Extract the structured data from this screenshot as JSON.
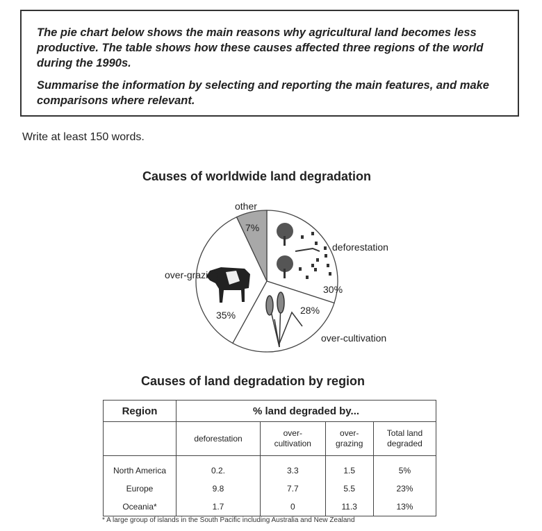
{
  "task": {
    "paragraph1": "The pie chart below shows the main reasons why agricultural land becomes less productive. The table shows how these causes affected three regions of the world during the 1990s.",
    "paragraph2": "Summarise the information by selecting and reporting the main features, and make comparisons where relevant."
  },
  "instruction": "Write at least 150 words.",
  "chart_data": [
    {
      "type": "pie",
      "title": "Causes of worldwide land degradation",
      "slices": [
        {
          "label": "deforestation",
          "value": 30,
          "value_label": "30%",
          "color": "#ffffff",
          "icon": "trees-and-stumps-icon"
        },
        {
          "label": "over-cultivation",
          "value": 28,
          "value_label": "28%",
          "color": "#ffffff",
          "icon": "wheat-icon"
        },
        {
          "label": "over-grazing",
          "value": 35,
          "value_label": "35%",
          "color": "#ffffff",
          "icon": "cow-icon"
        },
        {
          "label": "other",
          "value": 7,
          "value_label": "7%",
          "color": "#a8a8a8"
        }
      ]
    },
    {
      "type": "table",
      "title": "Causes of land degradation by region",
      "header_region": "Region",
      "header_group": "% land degraded by...",
      "columns": [
        [
          "deforestation"
        ],
        [
          "over-",
          "cultivation"
        ],
        [
          "over-",
          "grazing"
        ],
        [
          "Total land",
          "degraded"
        ]
      ],
      "rows": [
        {
          "region": "North America",
          "values": [
            "0.2.",
            "3.3",
            "1.5",
            "5%"
          ]
        },
        {
          "region": "Europe",
          "values": [
            "9.8",
            "7.7",
            "5.5",
            "23%"
          ]
        },
        {
          "region": "Oceania*",
          "values": [
            "1.7",
            "0",
            "11.3",
            "13%"
          ]
        }
      ],
      "footnote": "* A large group of islands in the South Pacific including Australia and New Zealand"
    }
  ]
}
